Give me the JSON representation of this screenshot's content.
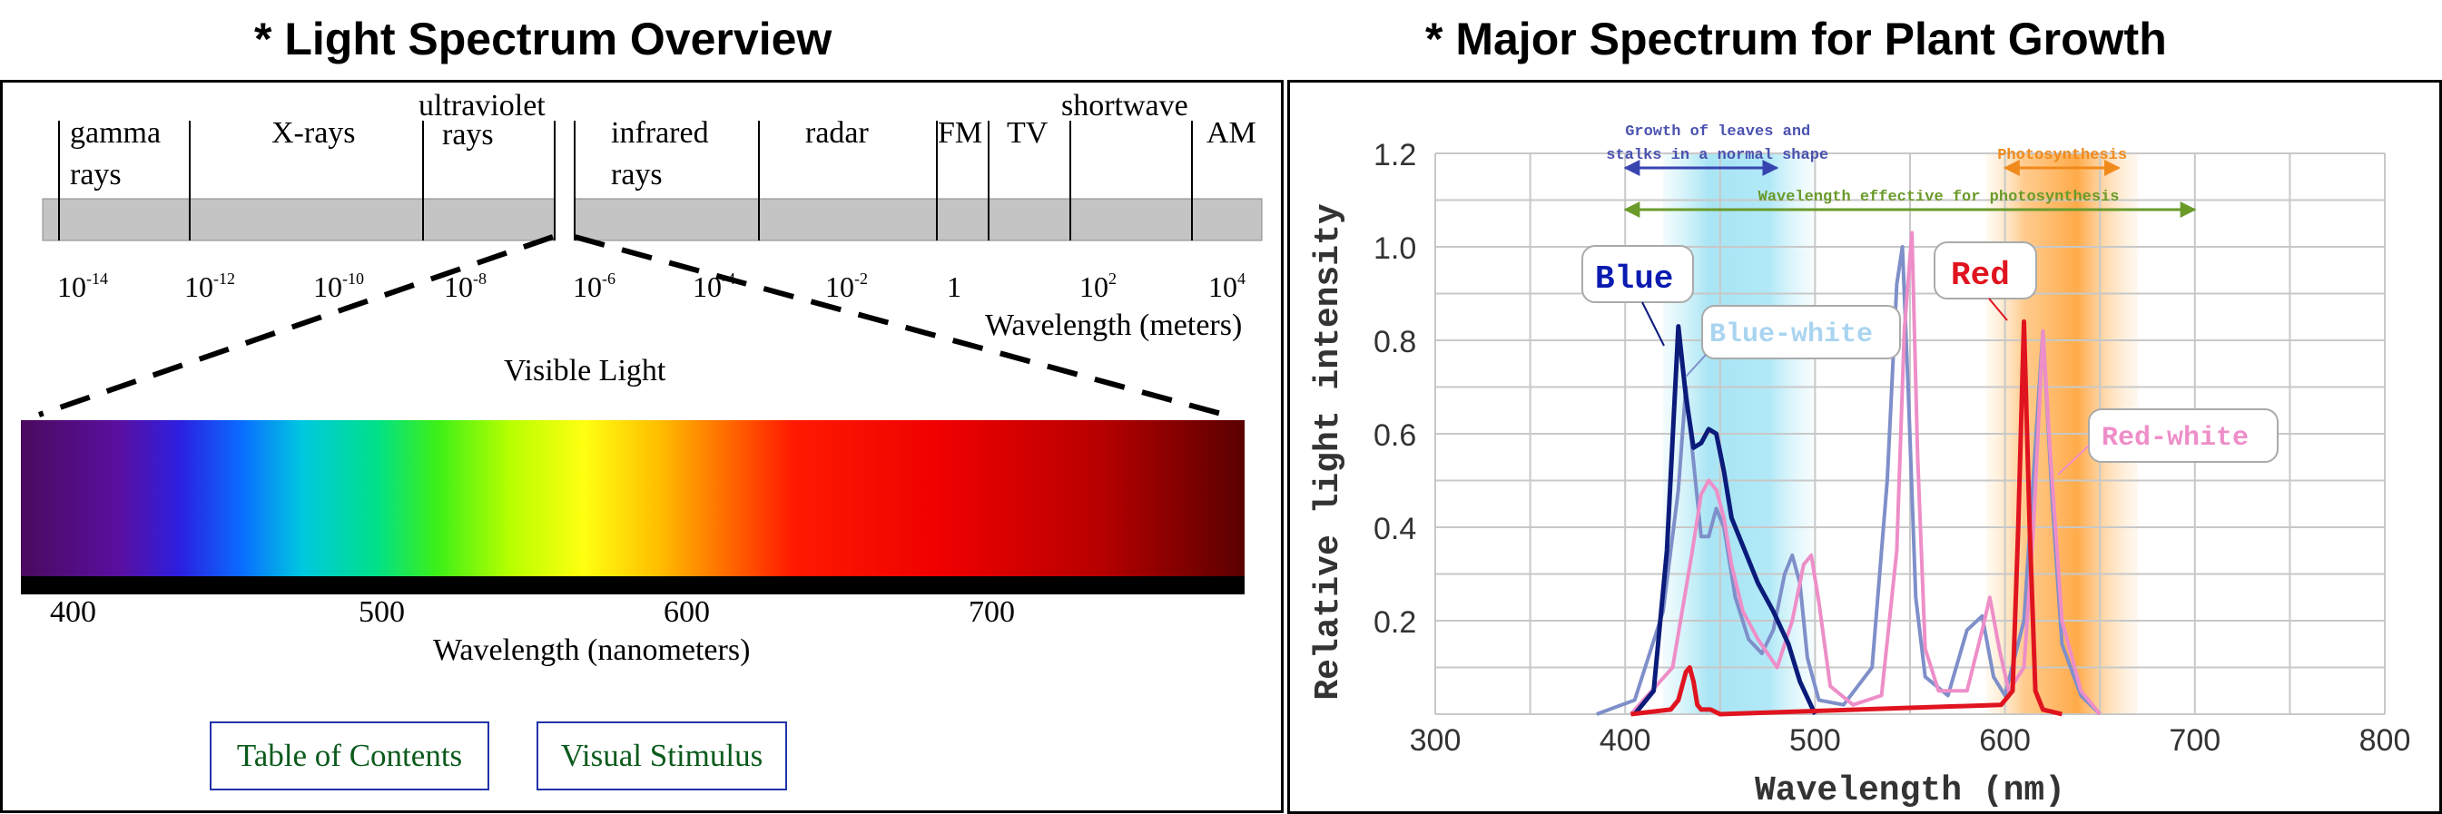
{
  "left": {
    "title": "* Light Spectrum Overview",
    "bands": [
      {
        "l1": "gamma",
        "l2": "rays"
      },
      {
        "l1": "X-rays",
        "l2": ""
      },
      {
        "l1": "ultraviolet",
        "l2": "rays"
      },
      {
        "l1": "infrared",
        "l2": "rays"
      },
      {
        "l1": "radar",
        "l2": ""
      },
      {
        "l1": "FM",
        "l2": ""
      },
      {
        "l1": "TV",
        "l2": ""
      },
      {
        "l1": "shortwave",
        "l2": ""
      },
      {
        "l1": "AM",
        "l2": ""
      }
    ],
    "exponents": [
      {
        "base": "10",
        "exp": "-14"
      },
      {
        "base": "10",
        "exp": "-12"
      },
      {
        "base": "10",
        "exp": "-10"
      },
      {
        "base": "10",
        "exp": "-8"
      },
      {
        "base": "10",
        "exp": "-6"
      },
      {
        "base": "10",
        "exp": "-4"
      },
      {
        "base": "10",
        "exp": "-2"
      },
      {
        "base": "1",
        "exp": ""
      },
      {
        "base": "10",
        "exp": "2"
      },
      {
        "base": "10",
        "exp": "4"
      }
    ],
    "wavelength_meters_label": "Wavelength (meters)",
    "visible_light_label": "Visible Light",
    "nm_ticks": [
      "400",
      "500",
      "600",
      "700"
    ],
    "nm_label": "Wavelength (nanometers)",
    "buttons": {
      "toc": "Table of Contents",
      "visual": "Visual Stimulus"
    }
  },
  "right": {
    "title": "* Major Spectrum for Plant Growth"
  },
  "chart_data": {
    "type": "line",
    "xlabel": "Wavelength (nm)",
    "ylabel": "Relative light intensity",
    "xlim": [
      300,
      800
    ],
    "ylim": [
      0,
      1.2
    ],
    "xticks": [
      "300",
      "400",
      "500",
      "600",
      "700",
      "800"
    ],
    "yticks": [
      "0.2",
      "0.4",
      "0.6",
      "0.8",
      "1.0",
      "1.2"
    ],
    "grid": true,
    "series": [
      {
        "name": "Blue",
        "color": "#0b1b7a",
        "x": [
          405,
          415,
          422,
          428,
          432,
          436,
          440,
          444,
          448,
          452,
          456,
          462,
          470,
          478,
          486,
          492,
          500
        ],
        "y": [
          0,
          0.05,
          0.35,
          0.83,
          0.68,
          0.57,
          0.58,
          0.61,
          0.6,
          0.52,
          0.42,
          0.36,
          0.28,
          0.22,
          0.15,
          0.07,
          0
        ]
      },
      {
        "name": "Blue-white",
        "color": "#7e8fc9",
        "x": [
          385,
          405,
          420,
          428,
          432,
          436,
          440,
          444,
          448,
          452,
          458,
          465,
          472,
          478,
          484,
          488,
          492,
          496,
          502,
          515,
          530,
          538,
          543,
          546,
          549,
          553,
          558,
          570,
          580,
          588,
          594,
          600,
          610,
          620,
          625,
          630,
          640,
          650
        ],
        "y": [
          0,
          0.03,
          0.22,
          0.48,
          0.7,
          0.54,
          0.38,
          0.38,
          0.44,
          0.4,
          0.25,
          0.16,
          0.13,
          0.18,
          0.3,
          0.34,
          0.28,
          0.12,
          0.03,
          0.02,
          0.1,
          0.5,
          0.92,
          1.0,
          0.7,
          0.25,
          0.08,
          0.04,
          0.18,
          0.21,
          0.08,
          0.04,
          0.2,
          0.82,
          0.45,
          0.15,
          0.04,
          0
        ]
      },
      {
        "name": "Red",
        "color": "#e0141f",
        "x": [
          403,
          424,
          428,
          432,
          434,
          436,
          438,
          440,
          445,
          450,
          598,
          604,
          607,
          610,
          613,
          616,
          620,
          630
        ],
        "y": [
          0,
          0.01,
          0.03,
          0.09,
          0.1,
          0.07,
          0.02,
          0.01,
          0.01,
          0,
          0.02,
          0.05,
          0.4,
          0.84,
          0.4,
          0.05,
          0.01,
          0
        ]
      },
      {
        "name": "Red-white",
        "color": "#ee8ec8",
        "x": [
          403,
          425,
          435,
          440,
          444,
          448,
          452,
          456,
          462,
          470,
          480,
          488,
          494,
          498,
          502,
          508,
          520,
          535,
          543,
          547,
          551,
          554,
          558,
          565,
          580,
          588,
          592,
          597,
          602,
          610,
          615,
          620,
          624,
          630,
          640,
          650
        ],
        "y": [
          0,
          0.1,
          0.34,
          0.47,
          0.5,
          0.48,
          0.42,
          0.32,
          0.22,
          0.16,
          0.1,
          0.2,
          0.32,
          0.34,
          0.24,
          0.06,
          0.02,
          0.04,
          0.35,
          0.82,
          1.03,
          0.55,
          0.14,
          0.05,
          0.05,
          0.18,
          0.25,
          0.14,
          0.05,
          0.1,
          0.4,
          0.82,
          0.55,
          0.2,
          0.05,
          0
        ]
      }
    ],
    "series_labels": [
      "Blue",
      "Blue-white",
      "Red",
      "Red-white"
    ],
    "annotations": [
      {
        "text": "Growth of leaves and",
        "color": "#4a52b0"
      },
      {
        "text": "stalks in a normal shape",
        "color": "#4a52b0"
      },
      {
        "text": "Photosynthesis",
        "color": "#f08a1c"
      },
      {
        "text": "Wavelength effective for photosynthesis",
        "color": "#6a9a2a"
      }
    ],
    "ranges": {
      "growth": [
        400,
        480
      ],
      "photosynthesis": [
        600,
        660
      ],
      "effective": [
        400,
        700
      ]
    },
    "bands": {
      "blue": [
        420,
        500
      ],
      "orange": [
        590,
        670
      ]
    }
  }
}
